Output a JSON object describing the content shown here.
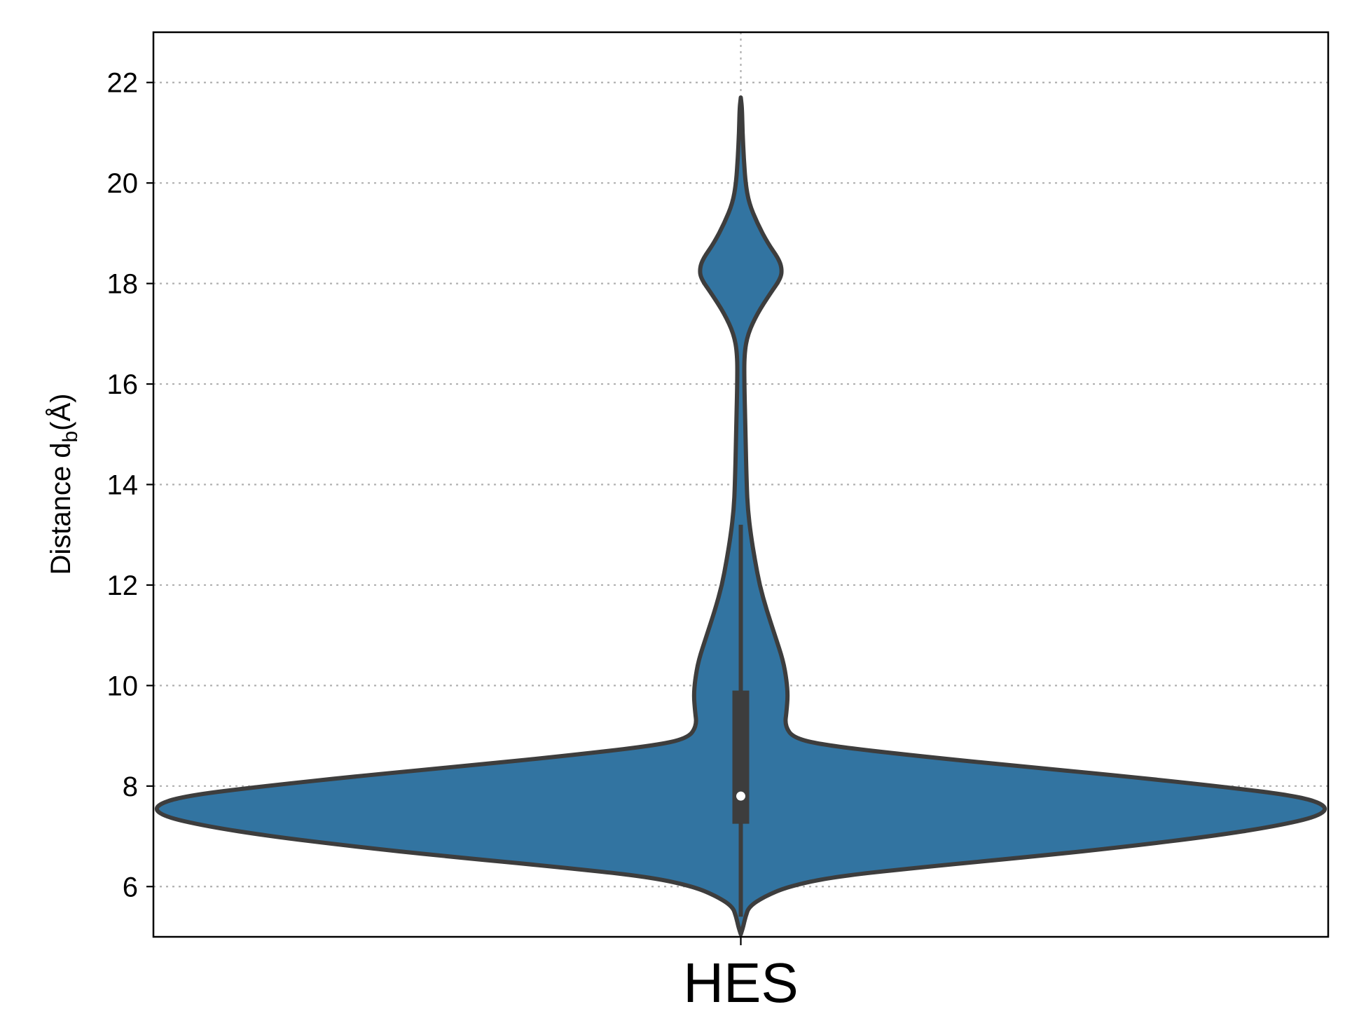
{
  "chart_data": {
    "type": "violin",
    "categories": [
      "HES"
    ],
    "ylabel": {
      "main": "Distance d",
      "sub": "b",
      "tail": "(Å)"
    },
    "ylim": [
      5.0,
      23.0
    ],
    "yticks": [
      6,
      8,
      10,
      12,
      14,
      16,
      18,
      20,
      22
    ],
    "grid": true,
    "colors": {
      "fill": "#3274a1",
      "outline": "#3d3d3d",
      "grid": "#b0b0b0",
      "median": "#ffffff"
    },
    "series": [
      {
        "category": "HES",
        "density_profile": [
          [
            5.05,
            0.0
          ],
          [
            5.2,
            0.004
          ],
          [
            5.4,
            0.008
          ],
          [
            5.6,
            0.014
          ],
          [
            5.8,
            0.04
          ],
          [
            6.0,
            0.08
          ],
          [
            6.2,
            0.16
          ],
          [
            6.4,
            0.32
          ],
          [
            6.6,
            0.5
          ],
          [
            6.8,
            0.66
          ],
          [
            7.0,
            0.8
          ],
          [
            7.2,
            0.91
          ],
          [
            7.4,
            0.985
          ],
          [
            7.6,
            1.0
          ],
          [
            7.8,
            0.95
          ],
          [
            8.0,
            0.81
          ],
          [
            8.2,
            0.65
          ],
          [
            8.4,
            0.47
          ],
          [
            8.6,
            0.3
          ],
          [
            8.8,
            0.15
          ],
          [
            8.95,
            0.09
          ],
          [
            9.2,
            0.075
          ],
          [
            9.5,
            0.078
          ],
          [
            9.8,
            0.08
          ],
          [
            10.1,
            0.078
          ],
          [
            10.5,
            0.072
          ],
          [
            11.0,
            0.058
          ],
          [
            11.5,
            0.044
          ],
          [
            12.0,
            0.032
          ],
          [
            12.5,
            0.024
          ],
          [
            13.0,
            0.017
          ],
          [
            13.5,
            0.012
          ],
          [
            14.0,
            0.01
          ],
          [
            15.0,
            0.008
          ],
          [
            16.0,
            0.006
          ],
          [
            16.6,
            0.006
          ],
          [
            17.0,
            0.012
          ],
          [
            17.4,
            0.028
          ],
          [
            17.8,
            0.05
          ],
          [
            18.1,
            0.068
          ],
          [
            18.3,
            0.07
          ],
          [
            18.5,
            0.064
          ],
          [
            18.8,
            0.046
          ],
          [
            19.2,
            0.028
          ],
          [
            19.6,
            0.014
          ],
          [
            20.0,
            0.008
          ],
          [
            20.5,
            0.005
          ],
          [
            21.0,
            0.003
          ],
          [
            21.5,
            0.002
          ],
          [
            21.7,
            0.0
          ]
        ],
        "quartiles": {
          "q1": 7.25,
          "median": 7.8,
          "q3": 9.9
        },
        "whiskers": [
          5.4,
          13.2
        ]
      }
    ]
  }
}
